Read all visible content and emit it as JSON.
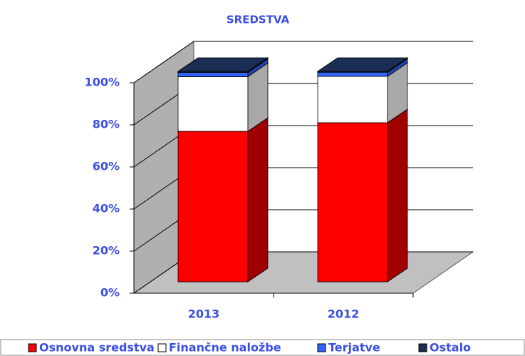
{
  "chart_data": {
    "type": "bar3d_stacked",
    "title": "SREDSTVA",
    "categories": [
      "2013",
      "2012"
    ],
    "series": [
      {
        "name": "Osnovna sredstva",
        "color": "#ff0000",
        "side": "#a00000",
        "values": [
          71.5,
          75.6
        ]
      },
      {
        "name": "Finančne naložbe",
        "color": "#ffffff",
        "side": "#a8a8a8",
        "values": [
          26,
          22
        ]
      },
      {
        "name": "Terjatve",
        "color": "#3366ff",
        "side": "#2244aa",
        "values": [
          2,
          2
        ]
      },
      {
        "name": "Ostalo",
        "color": "#1b2d52",
        "side": "#0d1a38",
        "values": [
          0.5,
          0.4
        ]
      }
    ],
    "ylim": [
      0,
      100
    ],
    "yticks": [
      {
        "value": 0,
        "label": "0%"
      },
      {
        "value": 20,
        "label": "20%"
      },
      {
        "value": 40,
        "label": "40%"
      },
      {
        "value": 60,
        "label": "60%"
      },
      {
        "value": 80,
        "label": "80%"
      },
      {
        "value": 100,
        "label": "100%"
      }
    ],
    "grid": true
  }
}
